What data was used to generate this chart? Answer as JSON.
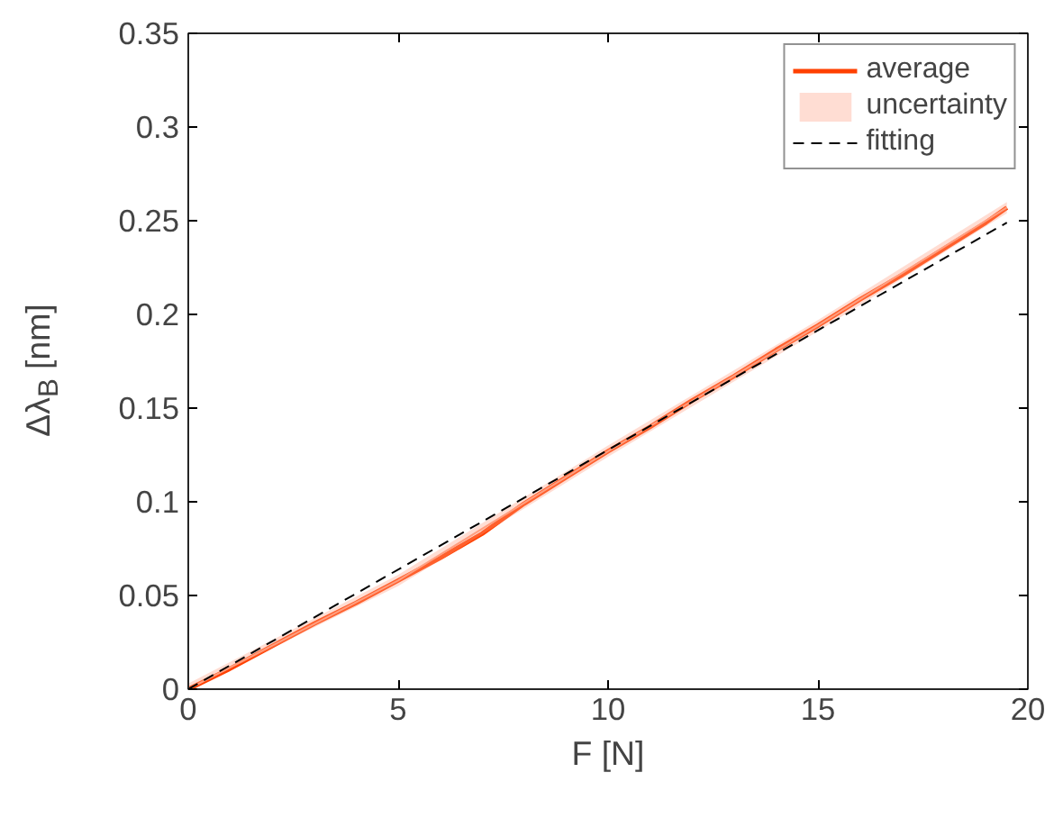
{
  "chart_data": {
    "type": "line",
    "xlabel": "F [N]",
    "ylabel": "Δλ$_{B}$ [nm]",
    "xlim": [
      0,
      20
    ],
    "ylim": [
      0,
      0.35
    ],
    "xticks": [
      0,
      5,
      10,
      15,
      20
    ],
    "yticks": [
      0,
      0.05,
      0.1,
      0.15,
      0.2,
      0.25,
      0.3,
      0.35
    ],
    "grid": false,
    "legend": "top right",
    "marker": "none",
    "series": [
      {
        "name": "average",
        "color": "#ff4000",
        "line_style": "solid",
        "x": [
          0,
          1,
          2,
          3,
          4,
          5,
          6,
          7,
          8,
          9,
          10,
          11,
          12,
          13,
          14,
          15,
          16,
          17,
          18,
          19,
          19.5
        ],
        "values": [
          0,
          0.011,
          0.023,
          0.035,
          0.046,
          0.058,
          0.07,
          0.083,
          0.099,
          0.113,
          0.127,
          0.14,
          0.154,
          0.167,
          0.181,
          0.194,
          0.208,
          0.221,
          0.235,
          0.249,
          0.257
        ]
      },
      {
        "name": "uncertainty",
        "type": "line",
        "line_style": "solid",
        "color": "#ff9f80",
        "x": [
          0,
          5,
          10,
          15,
          19.5
        ],
        "values": [
          0,
          0.058,
          0.127,
          0.194,
          0.257
        ],
        "lower": [
          0,
          0.055,
          0.124,
          0.191,
          0.254
        ],
        "upper": [
          0.003,
          0.061,
          0.13,
          0.197,
          0.26
        ]
      },
      {
        "name": "fitting",
        "color": "#000000",
        "line_style": "dashed",
        "x": [
          0,
          19.5
        ],
        "values": [
          0,
          0.249
        ]
      }
    ]
  }
}
